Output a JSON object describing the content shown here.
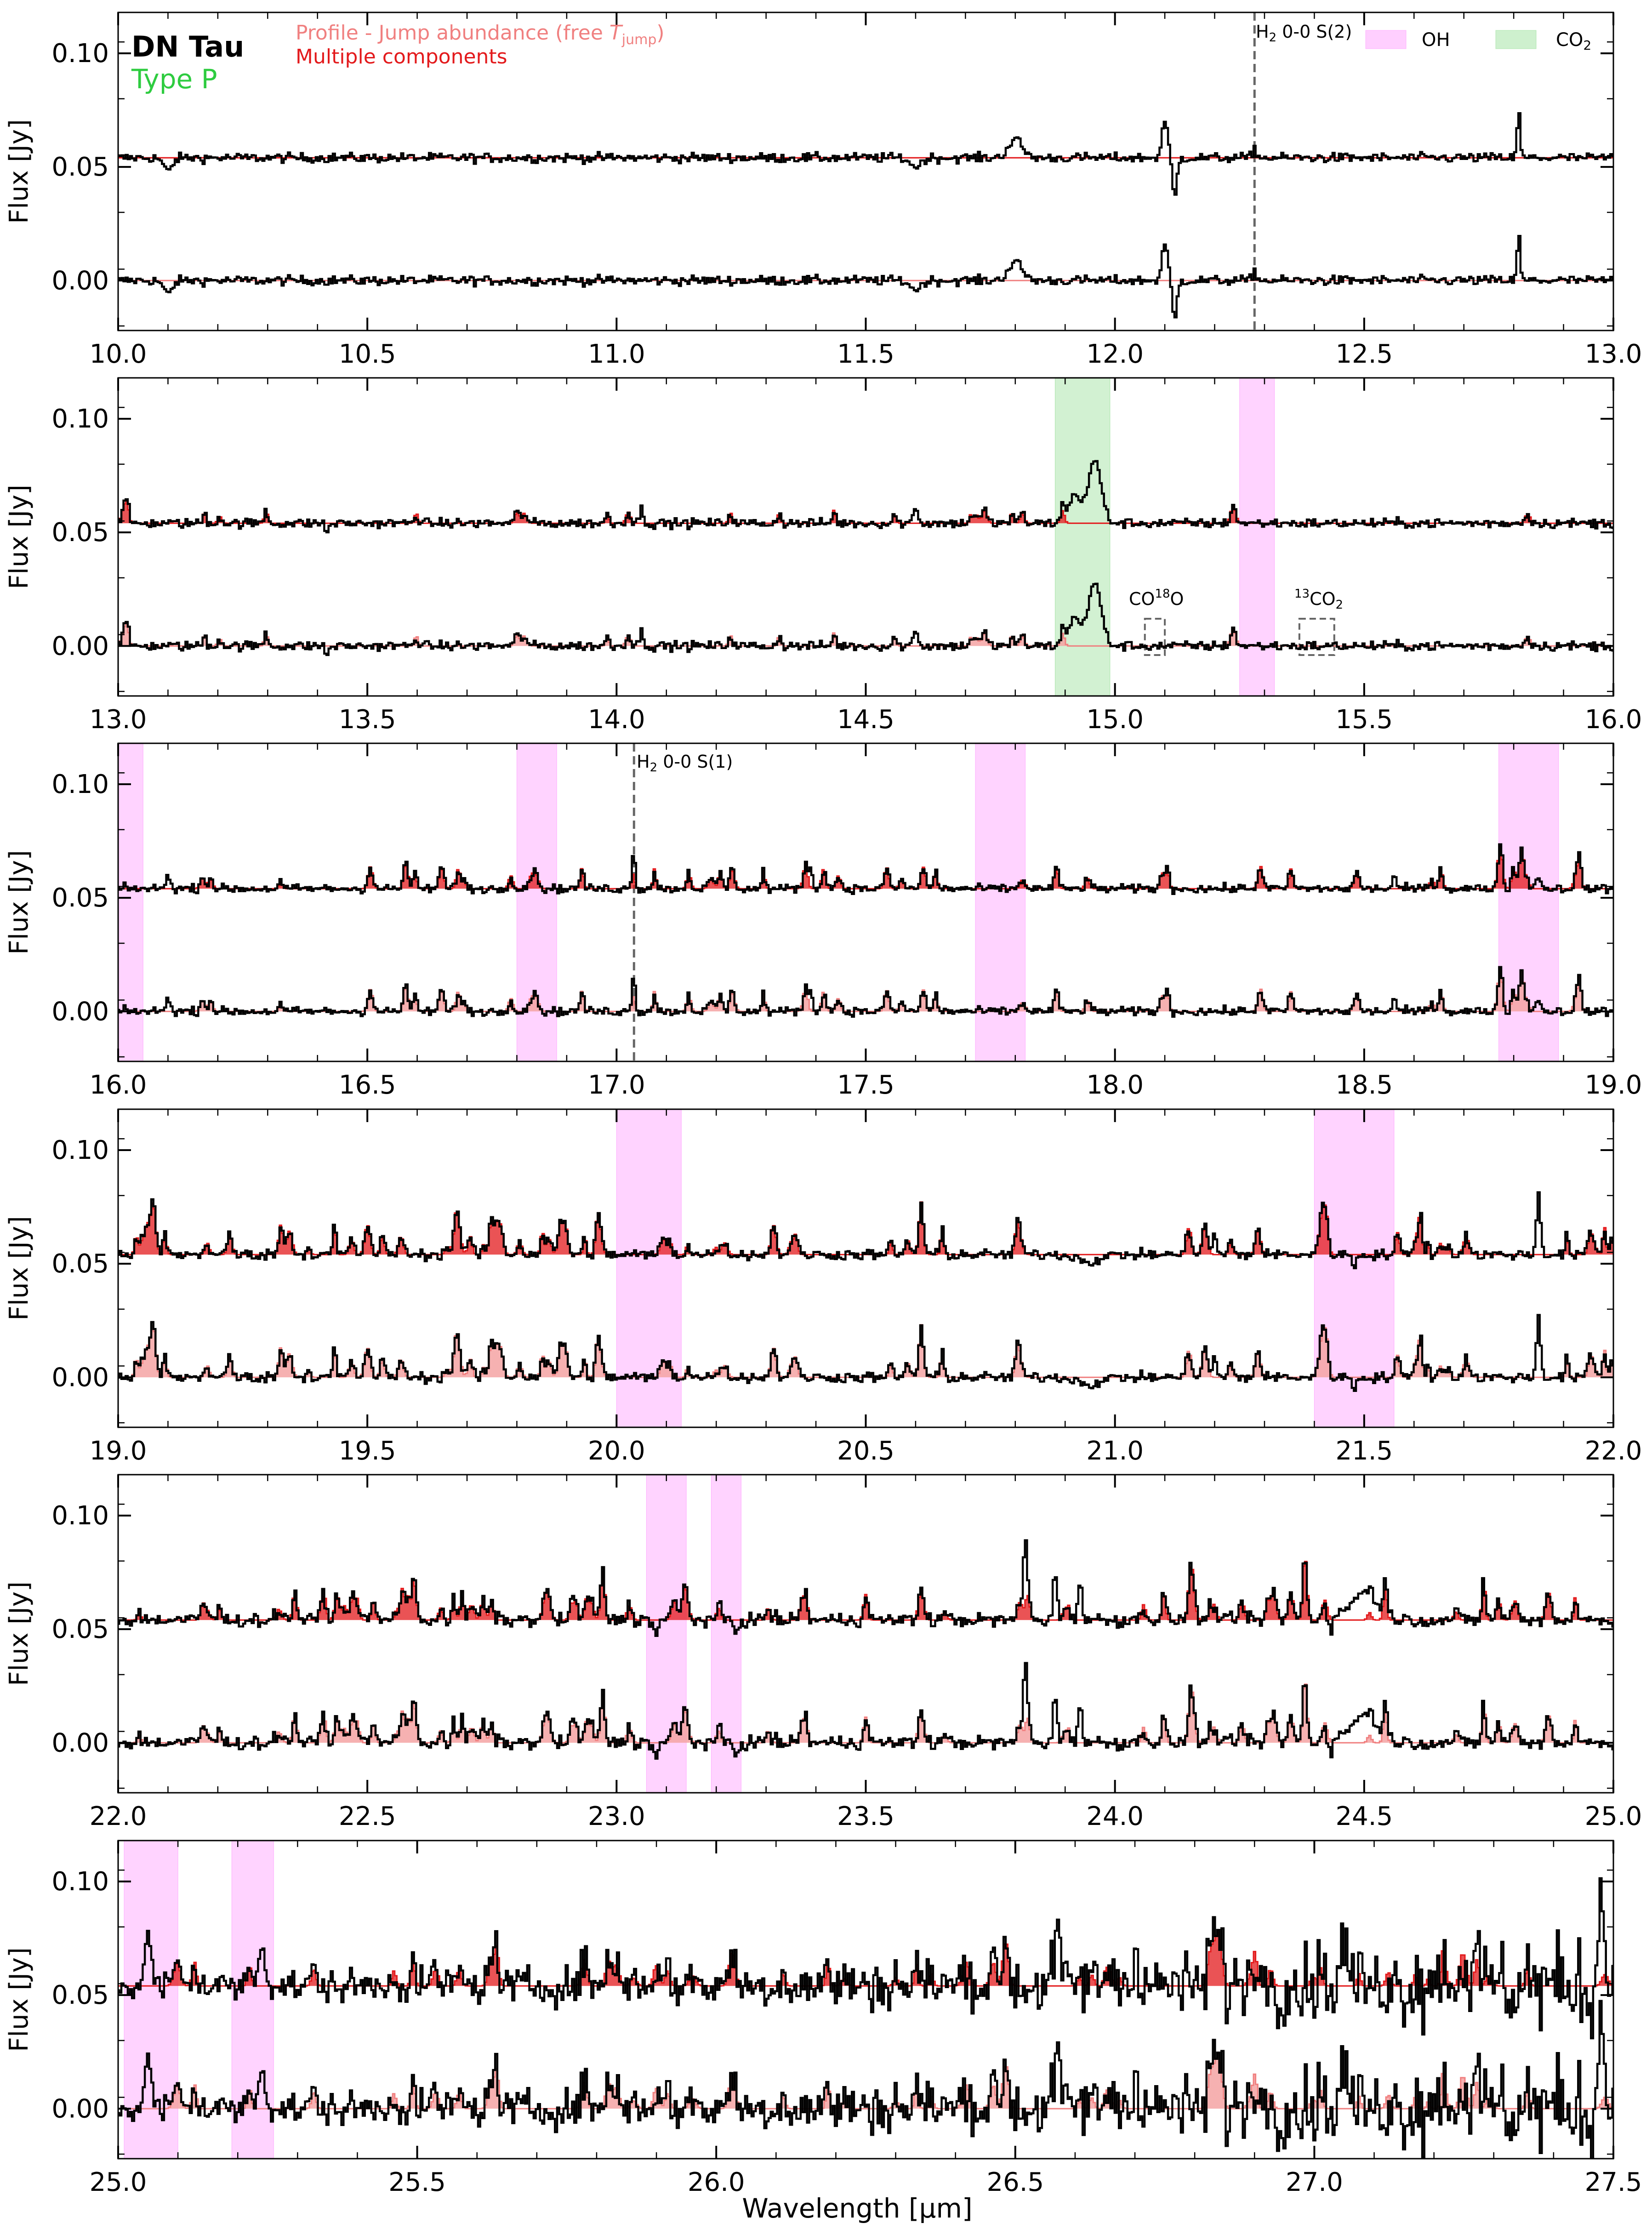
{
  "figure": {
    "source_title": "DN Tau",
    "source_type": "Type P",
    "xlabel": "Wavelength [μm]",
    "ylabel": "Flux [Jy]",
    "colors": {
      "data": "#000000",
      "multi": "#e31a1c",
      "profile": "#f08080",
      "profile_fill": "#f4a3a3",
      "oh": "#ff80ff",
      "co2": "#7fd87f",
      "type_text": "#2ecc40",
      "marker_line": "#666666"
    }
  },
  "legend_models": {
    "profile_prefix": "Profile - Jump abundance (free ",
    "profile_T": "T",
    "profile_sub": "jump",
    "profile_suffix": ")",
    "multi": "Multiple components"
  },
  "legend_species": {
    "oh": "OH",
    "co2_main": "CO",
    "co2_sub": "2"
  },
  "annotations": {
    "h2_s2_main": "H",
    "h2_s2_sub": "2",
    "h2_s2_rest": " 0-0 S(2)",
    "h2_s1_main": "H",
    "h2_s1_sub": "2",
    "h2_s1_rest": " 0-0 S(1)",
    "co18o_main": "CO",
    "co18o_sup": "18",
    "co18o_rest": "O",
    "c13o2_sup": "13",
    "c13o2_main": "CO",
    "c13o2_sub": "2"
  },
  "chart_data": {
    "type": "line",
    "ylim": [
      -0.022,
      0.118
    ],
    "yticks": [
      "0.00",
      "0.05",
      "0.10"
    ],
    "ytick_values": [
      0.0,
      0.05,
      0.1
    ],
    "offset_top": 0.054,
    "offset_bottom": 0.0,
    "series": [
      {
        "name": "Profile - Jump abundance (free T_jump)",
        "role": "model"
      },
      {
        "name": "Multiple components",
        "role": "model"
      },
      {
        "name": "OH",
        "role": "band"
      },
      {
        "name": "CO2",
        "role": "band"
      }
    ],
    "panels": [
      {
        "xlim": [
          10.0,
          13.0
        ],
        "xticks": [
          "10.0",
          "10.5",
          "11.0",
          "11.5",
          "12.0",
          "12.5",
          "13.0"
        ],
        "xtick_values": [
          10.0,
          10.5,
          11.0,
          11.5,
          12.0,
          12.5,
          13.0
        ],
        "oh_bands": [],
        "co2_bands": [],
        "h2_line": 12.28,
        "features": [
          [
            10.1,
            -0.006,
            0.012
          ],
          [
            11.6,
            -0.004,
            0.015
          ],
          [
            11.8,
            0.008,
            0.02
          ],
          [
            12.1,
            0.016,
            0.008
          ],
          [
            12.12,
            -0.018,
            0.006
          ],
          [
            12.28,
            0.004,
            0.006
          ],
          [
            12.81,
            0.022,
            0.004
          ]
        ],
        "noise": 0.002,
        "line_density": 0.0
      },
      {
        "xlim": [
          13.0,
          16.0
        ],
        "xticks": [
          "13.0",
          "13.5",
          "14.0",
          "14.5",
          "15.0",
          "15.5",
          "16.0"
        ],
        "xtick_values": [
          13.0,
          13.5,
          14.0,
          14.5,
          15.0,
          15.5,
          16.0
        ],
        "oh_bands": [
          [
            15.25,
            15.32
          ]
        ],
        "co2_bands": [
          [
            14.88,
            14.99
          ]
        ],
        "feature_boxes": [
          [
            15.06,
            15.1
          ],
          [
            15.37,
            15.44
          ]
        ],
        "features": [
          [
            14.96,
            0.027,
            0.018
          ],
          [
            14.92,
            0.012,
            0.02
          ],
          [
            14.6,
            0.008,
            0.006
          ],
          [
            14.05,
            0.006,
            0.006
          ],
          [
            13.42,
            -0.004,
            0.005
          ]
        ],
        "noise": 0.002,
        "line_density": 0.4
      },
      {
        "xlim": [
          16.0,
          19.0
        ],
        "xticks": [
          "16.0",
          "16.5",
          "17.0",
          "17.5",
          "18.0",
          "18.5",
          "19.0"
        ],
        "xtick_values": [
          16.0,
          16.5,
          17.0,
          17.5,
          18.0,
          18.5,
          19.0
        ],
        "oh_bands": [
          [
            16.0,
            16.05
          ],
          [
            16.8,
            16.88
          ],
          [
            17.72,
            17.82
          ],
          [
            18.77,
            18.89
          ]
        ],
        "co2_bands": [],
        "h2_line": 17.035,
        "features": [
          [
            17.035,
            0.012,
            0.004
          ],
          [
            17.39,
            0.01,
            0.004
          ],
          [
            16.1,
            0.008,
            0.005
          ],
          [
            18.56,
            0.006,
            0.005
          ],
          [
            18.85,
            0.004,
            0.01
          ]
        ],
        "noise": 0.0018,
        "line_density": 0.8
      },
      {
        "xlim": [
          19.0,
          22.0
        ],
        "xticks": [
          "19.0",
          "19.5",
          "20.0",
          "20.5",
          "21.0",
          "21.5",
          "22.0"
        ],
        "xtick_values": [
          19.0,
          19.5,
          20.0,
          20.5,
          21.0,
          21.5,
          22.0
        ],
        "oh_bands": [
          [
            20.0,
            20.13
          ],
          [
            21.4,
            21.56
          ]
        ],
        "co2_bands": [],
        "features": [
          [
            21.85,
            0.026,
            0.006
          ],
          [
            21.48,
            -0.005,
            0.006
          ],
          [
            20.95,
            -0.003,
            0.03
          ],
          [
            21.2,
            0.01,
            0.005
          ]
        ],
        "noise": 0.0022,
        "line_density": 1.2
      },
      {
        "xlim": [
          22.0,
          25.0
        ],
        "xticks": [
          "22.0",
          "22.5",
          "23.0",
          "23.5",
          "24.0",
          "24.5",
          "25.0"
        ],
        "xtick_values": [
          22.0,
          22.5,
          23.0,
          23.5,
          24.0,
          24.5,
          25.0
        ],
        "oh_bands": [
          [
            23.06,
            23.14
          ],
          [
            23.19,
            23.25
          ]
        ],
        "co2_bands": [],
        "features": [
          [
            23.82,
            0.028,
            0.005
          ],
          [
            23.88,
            0.022,
            0.005
          ],
          [
            23.93,
            0.02,
            0.005
          ],
          [
            24.5,
            0.012,
            0.04
          ],
          [
            23.08,
            -0.006,
            0.006
          ],
          [
            23.24,
            -0.006,
            0.006
          ],
          [
            24.43,
            -0.006,
            0.006
          ]
        ],
        "noise": 0.0028,
        "line_density": 1.2
      },
      {
        "xlim": [
          25.0,
          27.5
        ],
        "xticks": [
          "25.0",
          "25.5",
          "26.0",
          "26.5",
          "27.0",
          "27.5"
        ],
        "xtick_values": [
          25.0,
          25.5,
          26.0,
          26.5,
          27.0,
          27.5
        ],
        "oh_bands": [
          [
            25.01,
            25.1
          ],
          [
            25.19,
            25.26
          ]
        ],
        "co2_bands": [],
        "features": [
          [
            25.05,
            0.02,
            0.008
          ],
          [
            25.24,
            0.02,
            0.008
          ],
          [
            26.57,
            0.022,
            0.008
          ],
          [
            26.7,
            0.02,
            0.006
          ],
          [
            27.48,
            0.04,
            0.006
          ],
          [
            27.05,
            0.02,
            0.008
          ]
        ],
        "noise": 0.0065,
        "noise_growth": 2.2,
        "line_density": 1.0
      }
    ]
  }
}
